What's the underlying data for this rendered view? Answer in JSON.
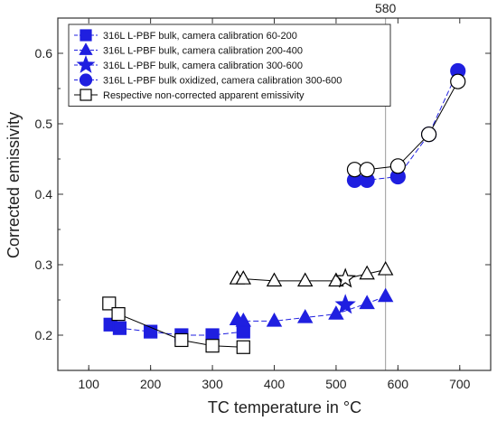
{
  "chart_data": {
    "type": "scatter",
    "xlabel": "TC temperature in °C",
    "ylabel": "Corrected emissivity",
    "xlim": [
      50,
      750
    ],
    "ylim": [
      0.15,
      0.65
    ],
    "xticks": [
      100,
      200,
      300,
      400,
      500,
      600,
      700
    ],
    "yticks": [
      0.2,
      0.3,
      0.4,
      0.5,
      0.6
    ],
    "grid": false,
    "legend_position": "top-left",
    "reference_line": {
      "x": 580,
      "label": "580"
    },
    "series": [
      {
        "name": "316L L-PBF bulk, camera calibration 60-200",
        "marker": "square",
        "filled": true,
        "color": "#1f1fe0",
        "connected": true,
        "x": [
          135,
          150,
          200,
          250,
          300,
          350
        ],
        "y": [
          0.215,
          0.21,
          0.205,
          0.2,
          0.2,
          0.205
        ]
      },
      {
        "name": "316L L-PBF bulk, camera calibration 200-400",
        "marker": "triangle",
        "filled": true,
        "color": "#1f1fe0",
        "connected": true,
        "x": [
          340,
          350,
          400,
          450,
          500,
          550,
          580
        ],
        "y": [
          0.222,
          0.22,
          0.22,
          0.225,
          0.23,
          0.245,
          0.255
        ]
      },
      {
        "name": "316L L-PBF bulk, camera calibration 300-600",
        "marker": "star",
        "filled": true,
        "color": "#1f1fe0",
        "connected": false,
        "x": [
          515
        ],
        "y": [
          0.243
        ]
      },
      {
        "name": "316L L-PBF bulk oxidized, camera calibration 300-600",
        "marker": "circle",
        "filled": true,
        "color": "#1f1fe0",
        "connected": true,
        "x": [
          530,
          550,
          600,
          650,
          697
        ],
        "y": [
          0.42,
          0.42,
          0.425,
          0.485,
          0.575
        ]
      },
      {
        "name": "Respective non-corrected apparent emissivity",
        "marker": "square",
        "filled": false,
        "color": "#000000",
        "connected": true,
        "x": [
          133,
          148,
          250,
          300,
          350
        ],
        "y": [
          0.245,
          0.23,
          0.193,
          0.185,
          0.183
        ]
      },
      {
        "name": "",
        "marker": "triangle",
        "filled": false,
        "color": "#000000",
        "connected": true,
        "x": [
          340,
          350,
          400,
          450,
          500,
          550,
          580
        ],
        "y": [
          0.28,
          0.28,
          0.277,
          0.277,
          0.277,
          0.287,
          0.293
        ]
      },
      {
        "name": "",
        "marker": "star",
        "filled": false,
        "color": "#000000",
        "connected": false,
        "x": [
          515
        ],
        "y": [
          0.28
        ]
      },
      {
        "name": "",
        "marker": "circle",
        "filled": false,
        "color": "#000000",
        "connected": true,
        "x": [
          530,
          550,
          600,
          650,
          697
        ],
        "y": [
          0.435,
          0.435,
          0.44,
          0.485,
          0.56
        ]
      }
    ]
  }
}
